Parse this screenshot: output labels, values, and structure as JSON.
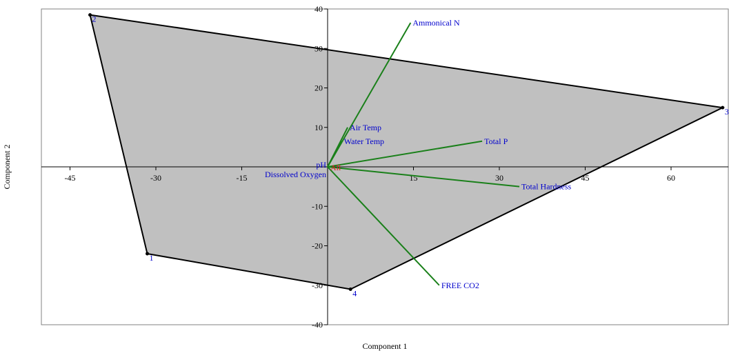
{
  "chart_data": {
    "type": "scatter",
    "title": "",
    "xlabel": "Component 1",
    "ylabel": "Component 2",
    "xlim": [
      -50,
      70
    ],
    "ylim": [
      -40,
      40
    ],
    "xticks": [
      -45,
      -30,
      -15,
      15,
      30,
      45,
      60
    ],
    "yticks": [
      40,
      30,
      20,
      10,
      -10,
      -20,
      -30,
      -40
    ],
    "colors": {
      "hull_fill": "#c0c0c0",
      "hull_stroke": "#000000",
      "loading_line": "#1a801a",
      "loading_label": "#0000cc",
      "point_label": "#0000cc",
      "all_label": "#e02020",
      "point_marker": "#000000"
    },
    "points": [
      {
        "label": "2",
        "x": -41.5,
        "y": 38.5
      },
      {
        "label": "3",
        "x": 69,
        "y": 15
      },
      {
        "label": "4",
        "x": 4,
        "y": -31
      },
      {
        "label": "1",
        "x": -31.5,
        "y": -22
      }
    ],
    "loadings": [
      {
        "name": "Ammonical N",
        "x": 14.5,
        "y": 36.5
      },
      {
        "name": "Air Temp",
        "x": 3.5,
        "y": 10
      },
      {
        "name": "Water Temp",
        "x": 2.5,
        "y": 6.5
      },
      {
        "name": "Total P",
        "x": 27,
        "y": 6.5
      },
      {
        "name": "Total Hardness",
        "x": 33.5,
        "y": -5
      },
      {
        "name": "FREE CO2",
        "x": 19.5,
        "y": -30
      },
      {
        "name": "pH",
        "x": 0,
        "y": 0
      },
      {
        "name": "Dissolved Oxygen",
        "x": 0,
        "y": 0
      }
    ],
    "group_label": "All"
  }
}
